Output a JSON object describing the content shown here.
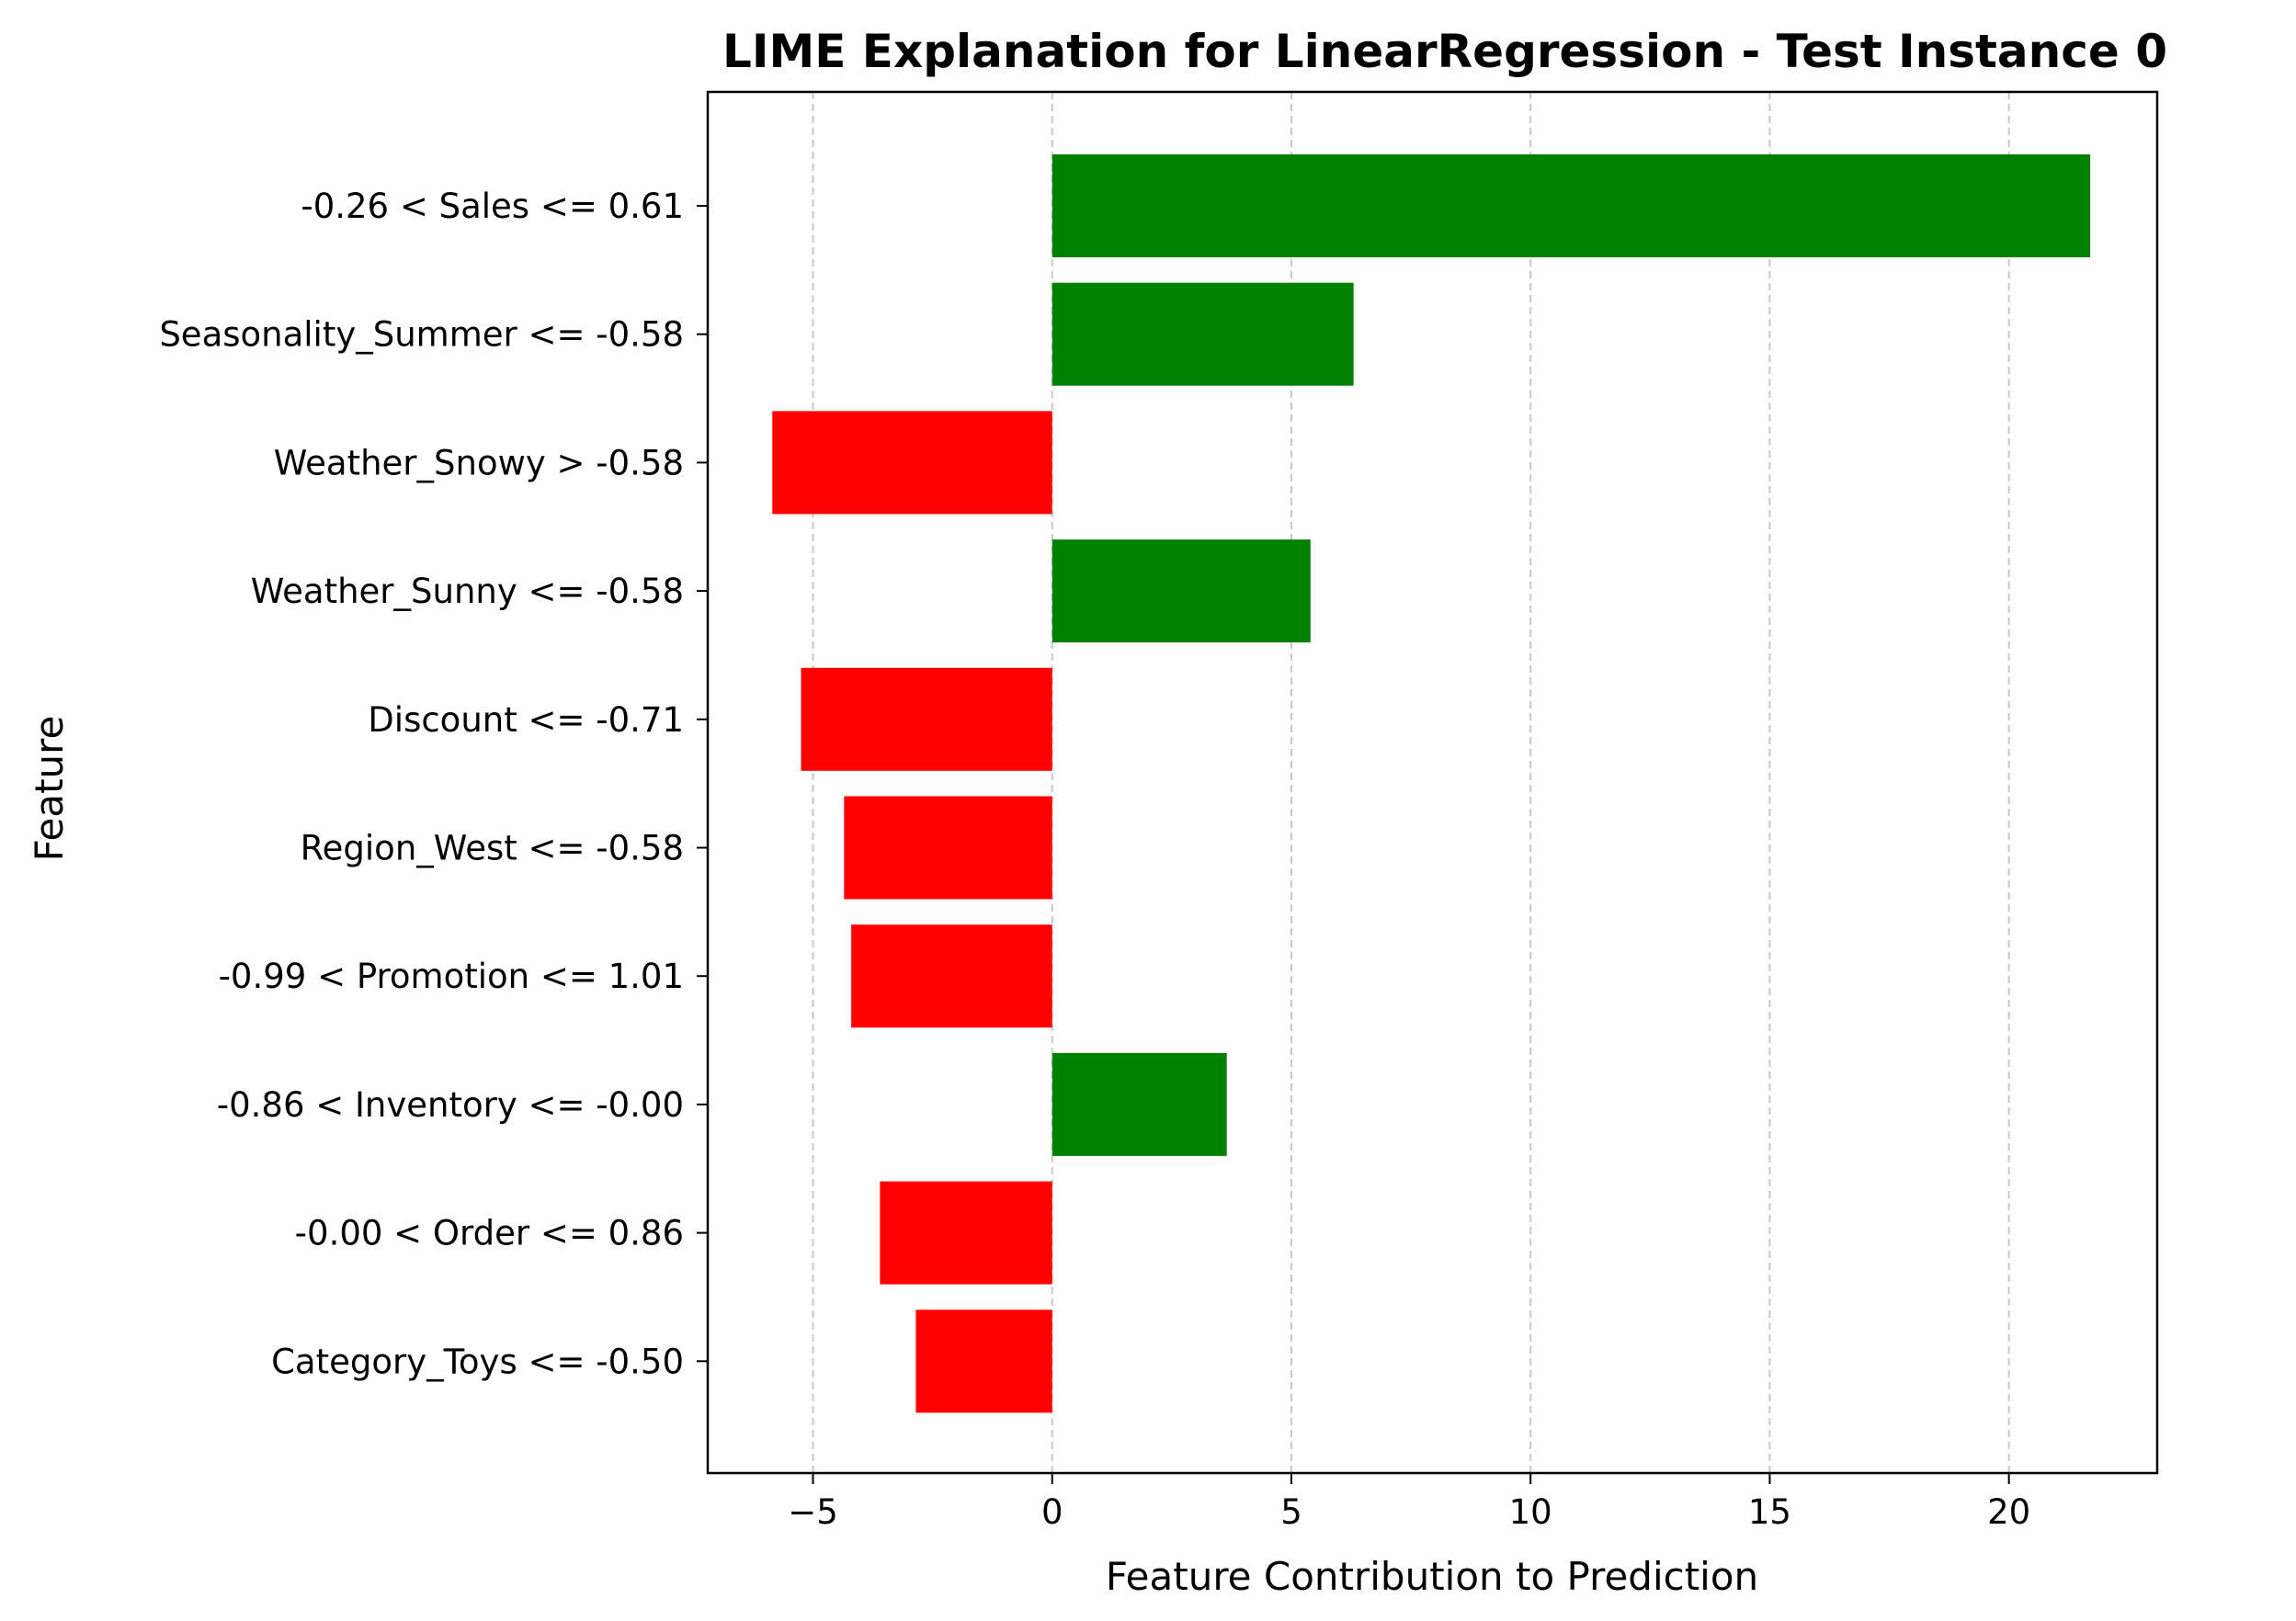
{
  "chart_data": {
    "type": "bar",
    "orientation": "horizontal",
    "title": "LIME Explanation for LinearRegression - Test Instance 0",
    "xlabel": "Feature Contribution to Prediction",
    "ylabel": "Feature",
    "xlim": [
      -7.2,
      23.1
    ],
    "xticks": [
      -5,
      0,
      5,
      10,
      15,
      20
    ],
    "xtick_labels": [
      "−5",
      "0",
      "5",
      "10",
      "15",
      "20"
    ],
    "grid": "x-dashed",
    "colors": {
      "positive": "#008000",
      "negative": "#ff0000",
      "grid": "#c8c8c8"
    },
    "categories": [
      "-0.26 < Sales <= 0.61",
      "Seasonality_Summer <= -0.58",
      "Weather_Snowy > -0.58",
      "Weather_Sunny <= -0.58",
      "Discount <= -0.71",
      "Region_West <= -0.58",
      "-0.99 < Promotion <= 1.01",
      "-0.86 < Inventory <= -0.00",
      "-0.00 < Order <= 0.86",
      "Category_Toys <= -0.50"
    ],
    "values": [
      21.7,
      6.3,
      -5.85,
      5.4,
      -5.25,
      -4.35,
      -4.2,
      3.65,
      -3.6,
      -2.85
    ]
  }
}
